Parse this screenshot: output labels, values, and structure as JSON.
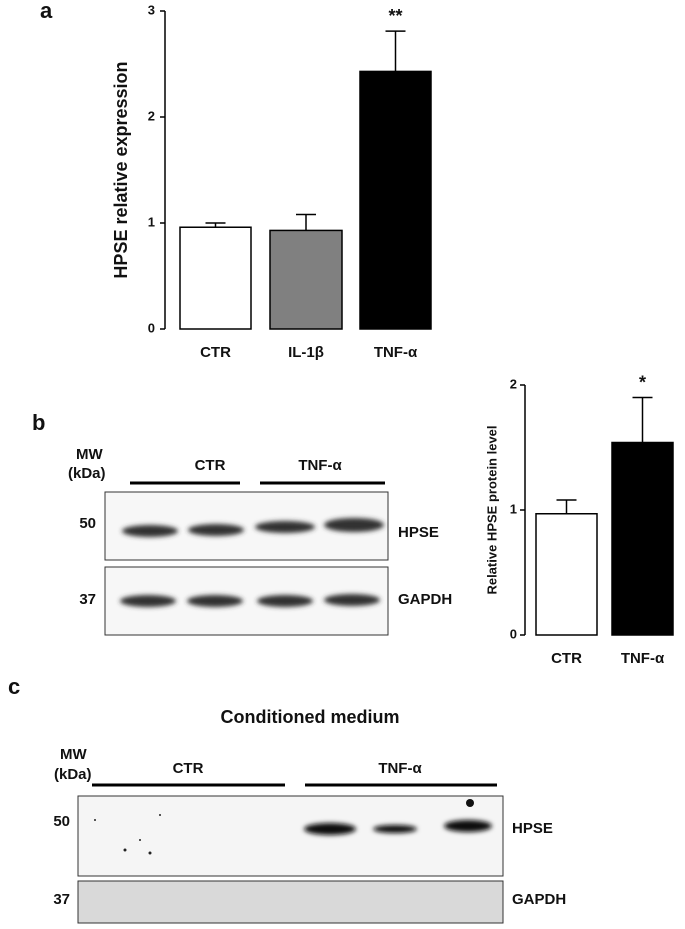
{
  "panel_labels": [
    "a",
    "b",
    "c"
  ],
  "chart_data": [
    {
      "type": "bar",
      "ylabel": "HPSE relative expression",
      "categories": [
        "CTR",
        "IL-1β",
        "TNF-α"
      ],
      "values": [
        0.96,
        0.93,
        2.43
      ],
      "errors": [
        0.04,
        0.15,
        0.38
      ],
      "colors": [
        "#ffffff",
        "#808080",
        "#000000"
      ],
      "annotations": [
        null,
        null,
        "**"
      ],
      "ylim": [
        0,
        3
      ],
      "yticks": [
        0,
        1,
        2,
        3
      ]
    },
    {
      "type": "bar",
      "ylabel": "Relative HPSE protein level",
      "categories": [
        "CTR",
        "TNF-α"
      ],
      "values": [
        0.97,
        1.54
      ],
      "errors": [
        0.11,
        0.36
      ],
      "colors": [
        "#ffffff",
        "#000000"
      ],
      "annotations": [
        null,
        "*"
      ],
      "ylim": [
        0,
        2
      ],
      "yticks": [
        0,
        1,
        2
      ]
    }
  ],
  "blot_b": {
    "mw": "MW",
    "kda": "(kDa)",
    "groups": [
      "CTR",
      "TNF-α"
    ],
    "markers": [
      "50",
      "37"
    ],
    "proteins": [
      "HPSE",
      "GAPDH"
    ]
  },
  "blot_c": {
    "title": "Conditioned medium",
    "mw": "MW",
    "kda": "(kDa)",
    "groups": [
      "CTR",
      "TNF-α"
    ],
    "markers": [
      "50",
      "37"
    ],
    "proteins": [
      "HPSE",
      "GAPDH"
    ]
  }
}
